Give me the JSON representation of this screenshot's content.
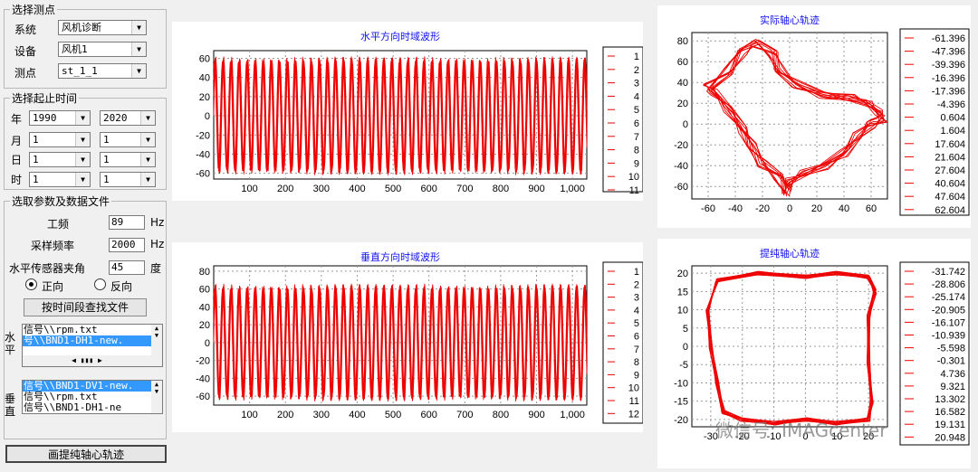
{
  "select_point": {
    "title": "选择测点",
    "system_label": "系统",
    "system_value": "风机诊断",
    "device_label": "设备",
    "device_value": "风机1",
    "point_label": "测点",
    "point_value": "st_1_1"
  },
  "time_range": {
    "title": "选择起止时间",
    "year_label": "年",
    "year_start": "1990",
    "year_end": "2020",
    "month_label": "月",
    "month_start": "1",
    "month_end": "1",
    "day_label": "日",
    "day_start": "1",
    "day_end": "1",
    "hour_label": "时",
    "hour_start": "1",
    "hour_end": "1"
  },
  "params": {
    "title": "选取参数及数据文件",
    "freq_label": "工频",
    "freq_value": "89",
    "freq_unit": "Hz",
    "sample_label": "采样频率",
    "sample_value": "2000",
    "sample_unit": "Hz",
    "angle_label": "水平传感器夹角",
    "angle_value": "45",
    "angle_unit": "度",
    "forward_label": "正向",
    "reverse_label": "反向",
    "find_button": "按时间段查找文件",
    "h_side_label": "水平",
    "h_files": [
      "信号\\\\rpm.txt",
      "号\\\\BND1-DH1-new."
    ],
    "v_side_label": "垂直",
    "v_files": [
      "信号\\\\BND1-DV1-new.",
      "信号\\\\rpm.txt",
      "信号\\\\BND1-DH1-ne"
    ],
    "draw_button": "画提纯轴心轨迹"
  },
  "plots": {
    "horizontal": {
      "title": "水平方向时域波形",
      "yticks": [
        60,
        40,
        20,
        0,
        -20,
        -40,
        -60
      ],
      "xticks": [
        "100",
        "200",
        "300",
        "400",
        "500",
        "600",
        "700",
        "800",
        "900",
        "1,000"
      ],
      "legend": [
        "1",
        "2",
        "3",
        "4",
        "5",
        "6",
        "7",
        "8",
        "9",
        "10",
        "11"
      ]
    },
    "vertical": {
      "title": "垂直方向时域波形",
      "yticks": [
        80,
        60,
        40,
        20,
        0,
        -20,
        -40,
        -60
      ],
      "xticks": [
        "100",
        "200",
        "300",
        "400",
        "500",
        "600",
        "700",
        "800",
        "900",
        "1,000"
      ],
      "legend": [
        "1",
        "2",
        "3",
        "4",
        "5",
        "6",
        "7",
        "8",
        "9",
        "10",
        "11",
        "12"
      ]
    },
    "actual_orbit": {
      "title": "实际轴心轨迹",
      "yticks": [
        80,
        60,
        40,
        20,
        0,
        -20,
        -40,
        -60
      ],
      "xticks": [
        "-60",
        "-40",
        "-20",
        "0",
        "20",
        "40",
        "60"
      ],
      "legend": [
        "-61.396",
        "-47.396",
        "-39.396",
        "-16.396",
        "-17.396",
        "-4.396",
        "0.604",
        "1.604",
        "17.604",
        "21.604",
        "27.604",
        "40.604",
        "47.604",
        "62.604"
      ]
    },
    "purified_orbit": {
      "title": "提纯轴心轨迹",
      "yticks": [
        20,
        15,
        10,
        5,
        0,
        -5,
        -10,
        -15,
        -20
      ],
      "xticks": [
        "-30",
        "-20",
        "-10",
        "0",
        "10",
        "20"
      ],
      "legend": [
        "-31.742",
        "-28.806",
        "-25.174",
        "-20.905",
        "-16.107",
        "-10.939",
        "-5.598",
        "-0.301",
        "4.736",
        "9.321",
        "13.302",
        "16.582",
        "19.131",
        "20.948"
      ]
    }
  },
  "watermark": "微信号: IMAGcenter",
  "colors": {
    "trace": "#ee0000",
    "title": "#1010ee",
    "panel_bg": "#ffffff",
    "window_bg": "#f0f0f0"
  }
}
